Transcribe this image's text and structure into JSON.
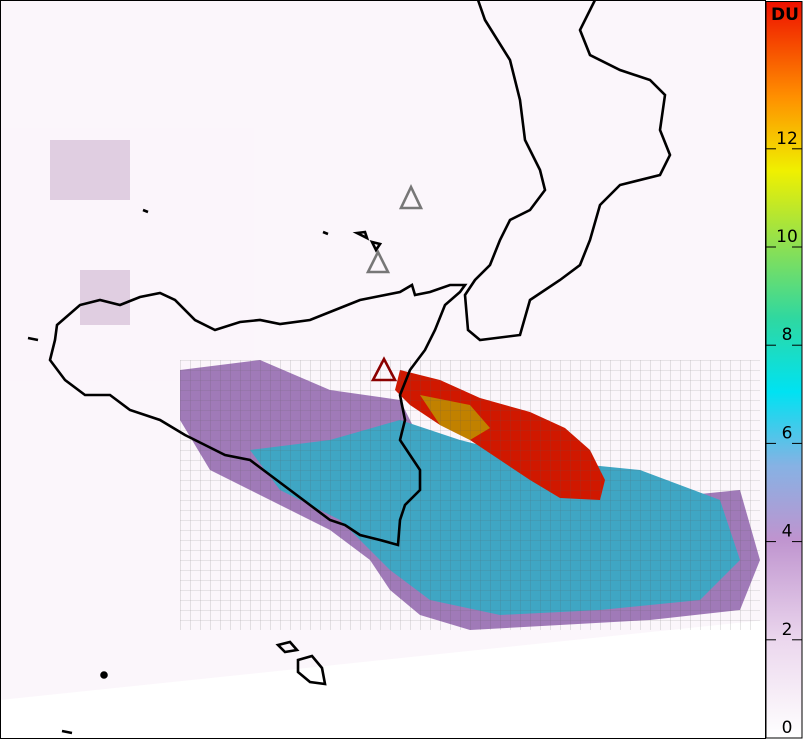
{
  "colorbar": {
    "label": "DU",
    "range": [
      0,
      15
    ],
    "ticks": [
      0,
      2,
      4,
      6,
      8,
      10,
      12
    ]
  }
}
